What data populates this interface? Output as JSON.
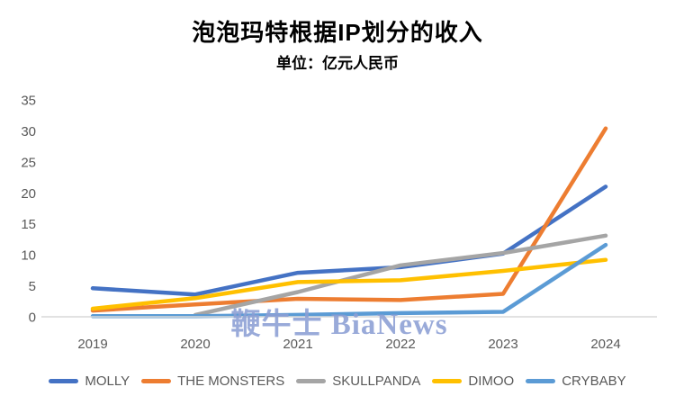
{
  "title": "泡泡玛特根据IP划分的收入",
  "subtitle": "单位：亿元人民币",
  "watermark": "鞭牛士 BiaNews",
  "colors": {
    "title": "#000000",
    "axis_line": "#D9D9D9",
    "tick_label": "#595959",
    "legend_text": "#595959",
    "watermark": "#8C9FD4",
    "background": "#FFFFFF"
  },
  "chart_data": {
    "type": "line",
    "title": "泡泡玛特根据IP划分的收入",
    "subtitle": "单位：亿元人民币",
    "xlabel": "",
    "ylabel": "",
    "ylim": [
      0,
      35
    ],
    "yticks": [
      0,
      5,
      10,
      15,
      20,
      25,
      30,
      35
    ],
    "grid": false,
    "legend_position": "bottom",
    "categories": [
      "2019",
      "2020",
      "2021",
      "2022",
      "2023",
      "2024"
    ],
    "series": [
      {
        "name": "MOLLY",
        "color": "#4472C4",
        "values": [
          4.6,
          3.6,
          7.1,
          8.0,
          10.2,
          21.0
        ]
      },
      {
        "name": "THE MONSTERS",
        "color": "#ED7D31",
        "values": [
          1.0,
          2.0,
          2.9,
          2.7,
          3.7,
          30.4
        ]
      },
      {
        "name": "SKULLPANDA",
        "color": "#A5A5A5",
        "values": [
          null,
          0.3,
          4.0,
          8.3,
          10.3,
          13.1
        ]
      },
      {
        "name": "DIMOO",
        "color": "#FFC000",
        "values": [
          1.3,
          3.0,
          5.6,
          5.9,
          7.4,
          9.2
        ]
      },
      {
        "name": "CRYBABY",
        "color": "#5B9BD5",
        "values": [
          0.1,
          0.1,
          0.3,
          0.6,
          0.8,
          11.6
        ]
      }
    ]
  }
}
